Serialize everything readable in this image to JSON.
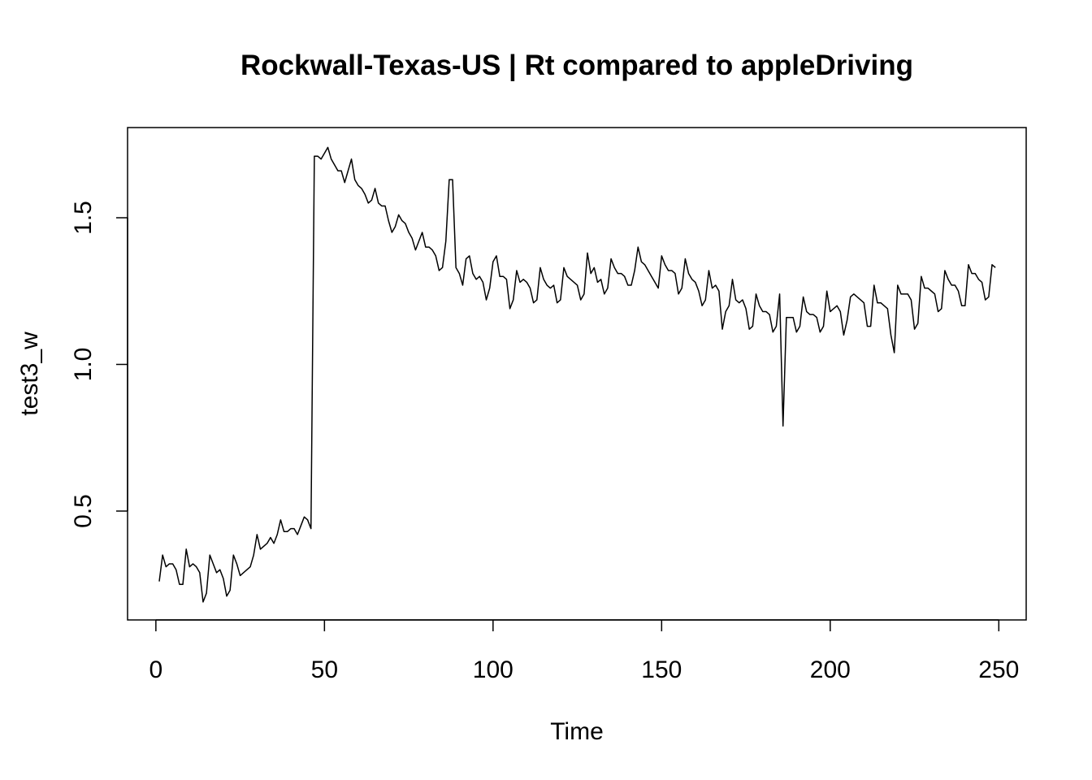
{
  "chart_data": {
    "type": "line",
    "title": "Rockwall-Texas-US | Rt compared to appleDriving",
    "xlabel": "Time",
    "ylabel": "test3_w",
    "xlim": [
      0,
      248
    ],
    "ylim": [
      0.19,
      1.74
    ],
    "x_ticks": [
      0,
      50,
      100,
      150,
      200,
      250
    ],
    "y_ticks": [
      0.5,
      1.0,
      1.5
    ],
    "x_tick_labels": [
      "0",
      "50",
      "100",
      "150",
      "200",
      "250"
    ],
    "y_tick_labels": [
      "0.5",
      "1.0",
      "1.5"
    ],
    "grid": false,
    "line_color": "#000000",
    "series": [
      {
        "x_start": 1,
        "values": [
          0.26,
          0.35,
          0.31,
          0.32,
          0.32,
          0.3,
          0.25,
          0.25,
          0.37,
          0.31,
          0.32,
          0.31,
          0.29,
          0.19,
          0.22,
          0.35,
          0.32,
          0.29,
          0.3,
          0.27,
          0.21,
          0.23,
          0.35,
          0.32,
          0.28,
          0.29,
          0.3,
          0.31,
          0.35,
          0.42,
          0.37,
          0.38,
          0.39,
          0.41,
          0.39,
          0.42,
          0.47,
          0.43,
          0.43,
          0.44,
          0.44,
          0.42,
          0.45,
          0.48,
          0.47,
          0.44,
          1.71,
          1.71,
          1.7,
          1.72,
          1.74,
          1.7,
          1.68,
          1.66,
          1.66,
          1.62,
          1.66,
          1.7,
          1.63,
          1.61,
          1.6,
          1.58,
          1.55,
          1.56,
          1.6,
          1.55,
          1.54,
          1.54,
          1.49,
          1.45,
          1.47,
          1.51,
          1.49,
          1.48,
          1.45,
          1.43,
          1.39,
          1.42,
          1.45,
          1.4,
          1.4,
          1.39,
          1.37,
          1.32,
          1.33,
          1.42,
          1.63,
          1.63,
          1.33,
          1.31,
          1.27,
          1.36,
          1.37,
          1.31,
          1.29,
          1.3,
          1.28,
          1.22,
          1.26,
          1.35,
          1.37,
          1.3,
          1.3,
          1.29,
          1.19,
          1.22,
          1.32,
          1.28,
          1.29,
          1.28,
          1.26,
          1.21,
          1.22,
          1.33,
          1.29,
          1.27,
          1.26,
          1.27,
          1.21,
          1.22,
          1.33,
          1.3,
          1.29,
          1.28,
          1.27,
          1.22,
          1.24,
          1.38,
          1.31,
          1.33,
          1.28,
          1.29,
          1.24,
          1.26,
          1.36,
          1.33,
          1.31,
          1.31,
          1.3,
          1.27,
          1.27,
          1.32,
          1.4,
          1.35,
          1.34,
          1.32,
          1.3,
          1.28,
          1.26,
          1.37,
          1.34,
          1.32,
          1.32,
          1.31,
          1.24,
          1.26,
          1.36,
          1.31,
          1.29,
          1.28,
          1.25,
          1.2,
          1.22,
          1.32,
          1.26,
          1.27,
          1.25,
          1.12,
          1.18,
          1.2,
          1.29,
          1.22,
          1.21,
          1.22,
          1.19,
          1.12,
          1.13,
          1.24,
          1.2,
          1.18,
          1.18,
          1.17,
          1.11,
          1.13,
          1.24,
          0.79,
          1.16,
          1.16,
          1.16,
          1.11,
          1.13,
          1.23,
          1.18,
          1.17,
          1.17,
          1.16,
          1.11,
          1.13,
          1.25,
          1.18,
          1.19,
          1.2,
          1.18,
          1.1,
          1.15,
          1.23,
          1.24,
          1.23,
          1.22,
          1.21,
          1.13,
          1.13,
          1.27,
          1.21,
          1.21,
          1.2,
          1.19,
          1.1,
          1.04,
          1.27,
          1.24,
          1.24,
          1.24,
          1.22,
          1.12,
          1.14,
          1.3,
          1.26,
          1.26,
          1.25,
          1.24,
          1.18,
          1.19,
          1.32,
          1.29,
          1.27,
          1.27,
          1.25,
          1.2,
          1.2,
          1.34,
          1.31,
          1.31,
          1.29,
          1.28,
          1.22,
          1.23,
          1.34,
          1.33
        ]
      }
    ]
  }
}
